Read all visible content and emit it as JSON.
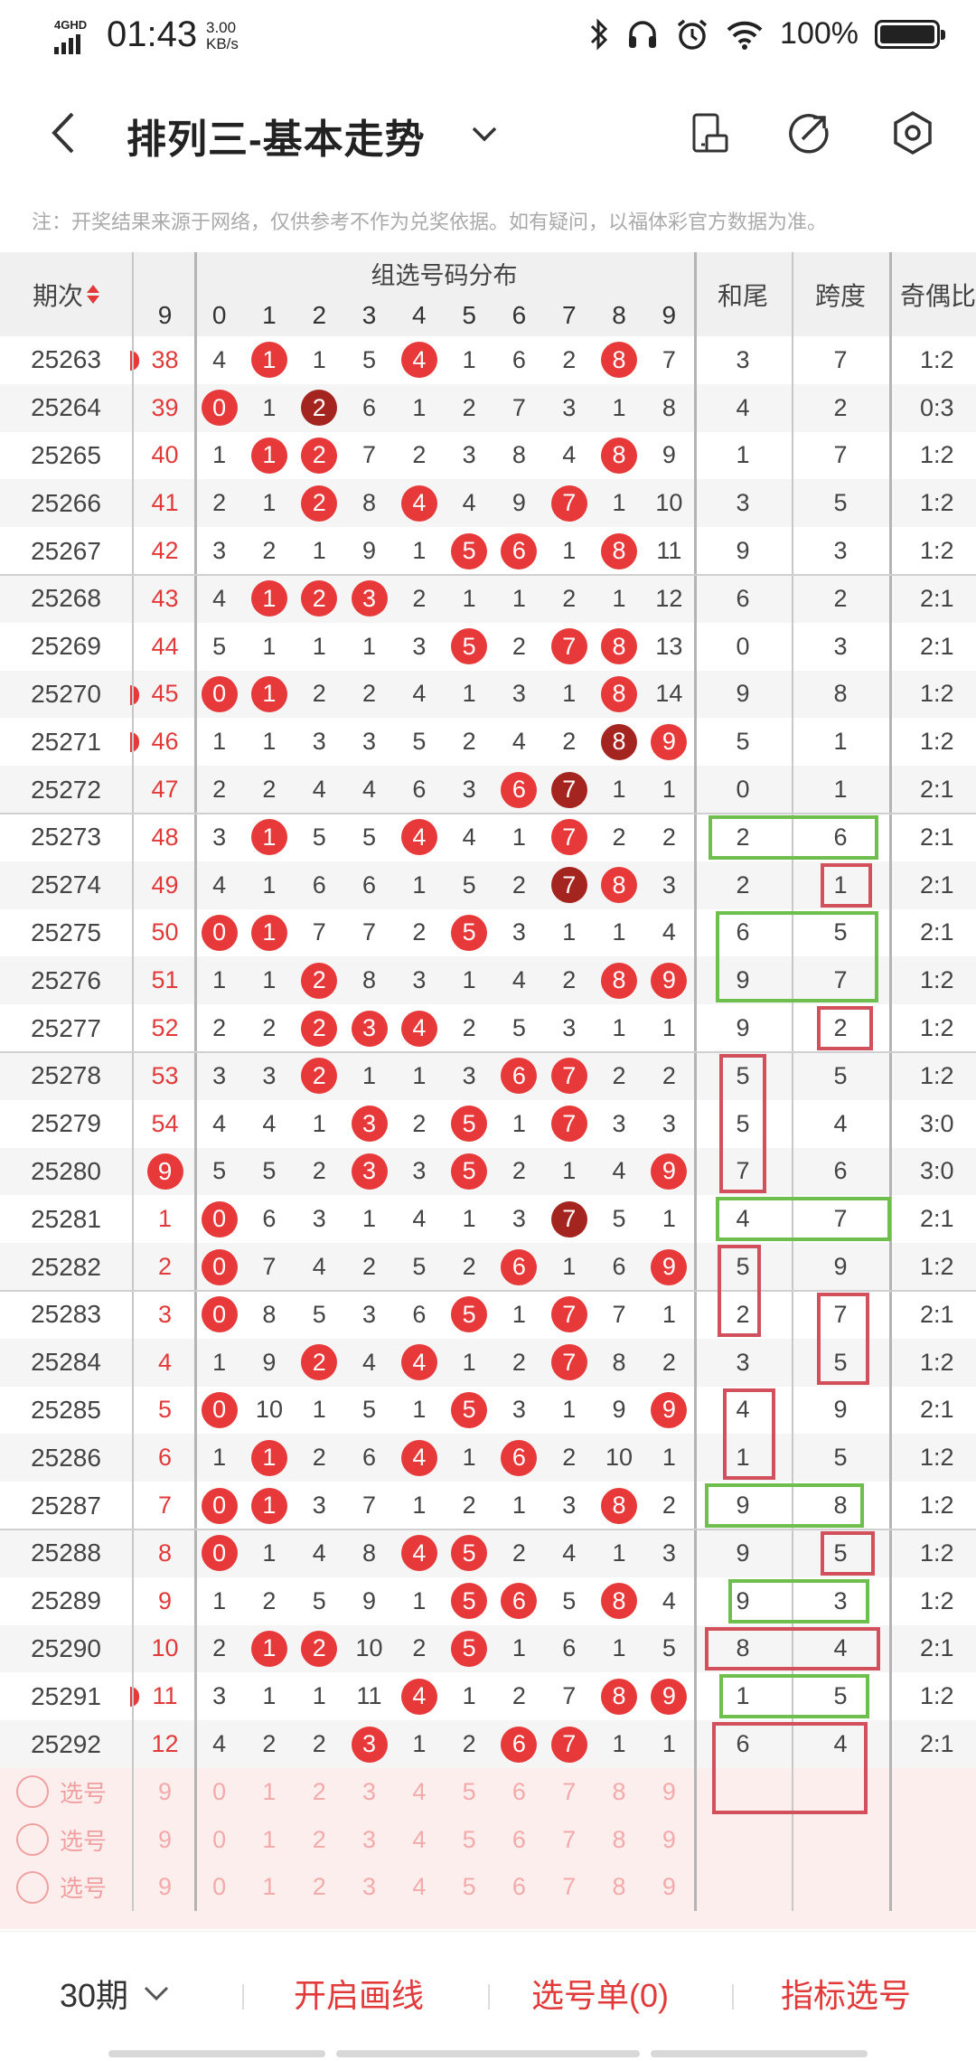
{
  "status_bar": {
    "network": "4GHD",
    "time": "01:43",
    "speed_value": "3.00",
    "speed_unit": "KB/s",
    "battery": "100%",
    "icons": [
      "bluetooth-icon",
      "headphones-icon",
      "alarm-icon",
      "wifi-icon",
      "battery-icon"
    ]
  },
  "nav": {
    "title": "排列三-基本走势",
    "icons": [
      "back-icon",
      "chevron-down-icon",
      "phone-rotate-icon",
      "share-icon",
      "settings-icon"
    ]
  },
  "notice": "注：开奖结果来源于网络，仅供参考不作为兑奖依据。如有疑问，以福体彩官方数据为准。",
  "table": {
    "headers": {
      "period": "期次",
      "group_dist": "组选号码分布",
      "sum_tail": "和尾",
      "span": "跨度",
      "odd_even": "奇偶比",
      "miss_col": "9",
      "digits": [
        "0",
        "1",
        "2",
        "3",
        "4",
        "5",
        "6",
        "7",
        "8",
        "9"
      ]
    },
    "rows": [
      {
        "period": "25263",
        "miss": "38",
        "edge": true,
        "cells": [
          "4",
          "1",
          "1",
          "5",
          "4",
          "1",
          "6",
          "2",
          "8",
          "7"
        ],
        "hit": [
          1,
          4,
          8
        ],
        "dark": [],
        "sum": "3",
        "span": "7",
        "odd": "1:2"
      },
      {
        "period": "25264",
        "miss": "39",
        "edge": false,
        "cells": [
          "0",
          "1",
          "2",
          "6",
          "1",
          "2",
          "7",
          "3",
          "1",
          "8"
        ],
        "hit": [
          0,
          2
        ],
        "dark": [
          2
        ],
        "sum": "4",
        "span": "2",
        "odd": "0:3"
      },
      {
        "period": "25265",
        "miss": "40",
        "edge": false,
        "cells": [
          "1",
          "1",
          "2",
          "7",
          "2",
          "3",
          "8",
          "4",
          "8",
          "9"
        ],
        "hit": [
          1,
          2,
          8
        ],
        "dark": [],
        "sum": "1",
        "span": "7",
        "odd": "1:2"
      },
      {
        "period": "25266",
        "miss": "41",
        "edge": false,
        "cells": [
          "2",
          "1",
          "2",
          "8",
          "4",
          "4",
          "9",
          "7",
          "1",
          "10"
        ],
        "hit": [
          2,
          4,
          7
        ],
        "dark": [],
        "sum": "3",
        "span": "5",
        "odd": "1:2"
      },
      {
        "period": "25267",
        "miss": "42",
        "edge": false,
        "cells": [
          "3",
          "2",
          "1",
          "9",
          "1",
          "5",
          "6",
          "1",
          "8",
          "11"
        ],
        "hit": [
          5,
          6,
          8
        ],
        "dark": [],
        "sum": "9",
        "span": "3",
        "odd": "1:2"
      },
      {
        "period": "25268",
        "miss": "43",
        "edge": false,
        "cells": [
          "4",
          "1",
          "2",
          "3",
          "2",
          "1",
          "1",
          "2",
          "1",
          "12"
        ],
        "hit": [
          1,
          2,
          3
        ],
        "dark": [],
        "sum": "6",
        "span": "2",
        "odd": "2:1"
      },
      {
        "period": "25269",
        "miss": "44",
        "edge": false,
        "cells": [
          "5",
          "1",
          "1",
          "1",
          "3",
          "5",
          "2",
          "7",
          "8",
          "13"
        ],
        "hit": [
          5,
          7,
          8
        ],
        "dark": [],
        "sum": "0",
        "span": "3",
        "odd": "2:1"
      },
      {
        "period": "25270",
        "miss": "45",
        "edge": true,
        "cells": [
          "0",
          "1",
          "2",
          "2",
          "4",
          "1",
          "3",
          "1",
          "8",
          "14"
        ],
        "hit": [
          0,
          1,
          8
        ],
        "dark": [],
        "sum": "9",
        "span": "8",
        "odd": "1:2"
      },
      {
        "period": "25271",
        "miss": "46",
        "edge": true,
        "cells": [
          "1",
          "1",
          "3",
          "3",
          "5",
          "2",
          "4",
          "2",
          "8",
          "9"
        ],
        "hit": [
          8,
          9
        ],
        "dark": [
          8
        ],
        "sum": "5",
        "span": "1",
        "odd": "1:2"
      },
      {
        "period": "25272",
        "miss": "47",
        "edge": false,
        "cells": [
          "2",
          "2",
          "4",
          "4",
          "6",
          "3",
          "6",
          "7",
          "1",
          "1"
        ],
        "hit": [
          6,
          7
        ],
        "dark": [
          7
        ],
        "sum": "0",
        "span": "1",
        "odd": "2:1"
      },
      {
        "period": "25273",
        "miss": "48",
        "edge": false,
        "cells": [
          "3",
          "1",
          "5",
          "5",
          "4",
          "4",
          "1",
          "7",
          "2",
          "2"
        ],
        "hit": [
          1,
          4,
          7
        ],
        "dark": [],
        "sum": "2",
        "span": "6",
        "odd": "2:1"
      },
      {
        "period": "25274",
        "miss": "49",
        "edge": false,
        "cells": [
          "4",
          "1",
          "6",
          "6",
          "1",
          "5",
          "2",
          "7",
          "8",
          "3"
        ],
        "hit": [
          7,
          8
        ],
        "dark": [
          7
        ],
        "sum": "2",
        "span": "1",
        "odd": "2:1"
      },
      {
        "period": "25275",
        "miss": "50",
        "edge": false,
        "cells": [
          "0",
          "1",
          "7",
          "7",
          "2",
          "5",
          "3",
          "1",
          "1",
          "4"
        ],
        "hit": [
          0,
          1,
          5
        ],
        "dark": [],
        "sum": "6",
        "span": "5",
        "odd": "2:1"
      },
      {
        "period": "25276",
        "miss": "51",
        "edge": false,
        "cells": [
          "1",
          "1",
          "2",
          "8",
          "3",
          "1",
          "4",
          "2",
          "8",
          "9"
        ],
        "hit": [
          2,
          8,
          9
        ],
        "dark": [],
        "sum": "9",
        "span": "7",
        "odd": "1:2"
      },
      {
        "period": "25277",
        "miss": "52",
        "edge": false,
        "cells": [
          "2",
          "2",
          "2",
          "3",
          "4",
          "2",
          "5",
          "3",
          "1",
          "1"
        ],
        "hit": [
          2,
          3,
          4
        ],
        "dark": [],
        "sum": "9",
        "span": "2",
        "odd": "1:2"
      },
      {
        "period": "25278",
        "miss": "53",
        "edge": false,
        "cells": [
          "3",
          "3",
          "2",
          "1",
          "1",
          "3",
          "6",
          "7",
          "2",
          "2"
        ],
        "hit": [
          2,
          6,
          7
        ],
        "dark": [],
        "sum": "5",
        "span": "5",
        "odd": "1:2"
      },
      {
        "period": "25279",
        "miss": "54",
        "edge": false,
        "cells": [
          "4",
          "4",
          "1",
          "3",
          "2",
          "5",
          "1",
          "7",
          "3",
          "3"
        ],
        "hit": [
          3,
          5,
          7
        ],
        "dark": [],
        "sum": "5",
        "span": "4",
        "odd": "3:0"
      },
      {
        "period": "25280",
        "miss": "9",
        "miss_ball": true,
        "edge": false,
        "cells": [
          "5",
          "5",
          "2",
          "3",
          "3",
          "5",
          "2",
          "1",
          "4",
          "9"
        ],
        "hit": [
          3,
          5,
          9
        ],
        "dark": [],
        "sum": "7",
        "span": "6",
        "odd": "3:0"
      },
      {
        "period": "25281",
        "miss": "1",
        "edge": false,
        "cells": [
          "0",
          "6",
          "3",
          "1",
          "4",
          "1",
          "3",
          "7",
          "5",
          "1"
        ],
        "hit": [
          0,
          7
        ],
        "dark": [
          7
        ],
        "sum": "4",
        "span": "7",
        "odd": "2:1"
      },
      {
        "period": "25282",
        "miss": "2",
        "edge": false,
        "cells": [
          "0",
          "7",
          "4",
          "2",
          "5",
          "2",
          "6",
          "1",
          "6",
          "9"
        ],
        "hit": [
          0,
          6,
          9
        ],
        "dark": [],
        "sum": "5",
        "span": "9",
        "odd": "1:2"
      },
      {
        "period": "25283",
        "miss": "3",
        "edge": false,
        "cells": [
          "0",
          "8",
          "5",
          "3",
          "6",
          "5",
          "1",
          "7",
          "7",
          "1"
        ],
        "hit": [
          0,
          5,
          7
        ],
        "dark": [],
        "sum": "2",
        "span": "7",
        "odd": "2:1"
      },
      {
        "period": "25284",
        "miss": "4",
        "edge": false,
        "cells": [
          "1",
          "9",
          "2",
          "4",
          "4",
          "1",
          "2",
          "7",
          "8",
          "2"
        ],
        "hit": [
          2,
          4,
          7
        ],
        "dark": [],
        "sum": "3",
        "span": "5",
        "odd": "1:2"
      },
      {
        "period": "25285",
        "miss": "5",
        "edge": false,
        "cells": [
          "0",
          "10",
          "1",
          "5",
          "1",
          "5",
          "3",
          "1",
          "9",
          "9"
        ],
        "hit": [
          0,
          5,
          9
        ],
        "dark": [],
        "sum": "4",
        "span": "9",
        "odd": "2:1"
      },
      {
        "period": "25286",
        "miss": "6",
        "edge": false,
        "cells": [
          "1",
          "1",
          "2",
          "6",
          "4",
          "1",
          "6",
          "2",
          "10",
          "1"
        ],
        "hit": [
          1,
          4,
          6
        ],
        "dark": [],
        "sum": "1",
        "span": "5",
        "odd": "1:2"
      },
      {
        "period": "25287",
        "miss": "7",
        "edge": false,
        "cells": [
          "0",
          "1",
          "3",
          "7",
          "1",
          "2",
          "1",
          "3",
          "8",
          "2"
        ],
        "hit": [
          0,
          1,
          8
        ],
        "dark": [],
        "sum": "9",
        "span": "8",
        "odd": "1:2"
      },
      {
        "period": "25288",
        "miss": "8",
        "edge": false,
        "cells": [
          "0",
          "1",
          "4",
          "8",
          "4",
          "5",
          "2",
          "4",
          "1",
          "3"
        ],
        "hit": [
          0,
          4,
          5
        ],
        "dark": [],
        "sum": "9",
        "span": "5",
        "odd": "1:2"
      },
      {
        "period": "25289",
        "miss": "9",
        "edge": false,
        "cells": [
          "1",
          "2",
          "5",
          "9",
          "1",
          "5",
          "6",
          "5",
          "8",
          "4"
        ],
        "hit": [
          5,
          6,
          8
        ],
        "dark": [],
        "sum": "9",
        "span": "3",
        "odd": "1:2"
      },
      {
        "period": "25290",
        "miss": "10",
        "edge": false,
        "cells": [
          "2",
          "1",
          "2",
          "10",
          "2",
          "5",
          "1",
          "6",
          "1",
          "5"
        ],
        "hit": [
          1,
          2,
          5
        ],
        "dark": [],
        "sum": "8",
        "span": "4",
        "odd": "2:1"
      },
      {
        "period": "25291",
        "miss": "11",
        "edge": true,
        "cells": [
          "3",
          "1",
          "1",
          "11",
          "4",
          "1",
          "2",
          "7",
          "8",
          "9"
        ],
        "hit": [
          4,
          8,
          9
        ],
        "dark": [],
        "sum": "1",
        "span": "5",
        "odd": "1:2"
      },
      {
        "period": "25292",
        "miss": "12",
        "edge": false,
        "cells": [
          "4",
          "2",
          "2",
          "3",
          "1",
          "2",
          "6",
          "7",
          "1",
          "1"
        ],
        "hit": [
          3,
          6,
          7
        ],
        "dark": [],
        "sum": "6",
        "span": "4",
        "odd": "2:1"
      }
    ],
    "select_rows": [
      {
        "label": "选号",
        "miss": "9",
        "digits": [
          "0",
          "1",
          "2",
          "3",
          "4",
          "5",
          "6",
          "7",
          "8",
          "9"
        ]
      },
      {
        "label": "选号",
        "miss": "9",
        "digits": [
          "0",
          "1",
          "2",
          "3",
          "4",
          "5",
          "6",
          "7",
          "8",
          "9"
        ]
      },
      {
        "label": "选号",
        "miss": "9",
        "digits": [
          "0",
          "1",
          "2",
          "3",
          "4",
          "5",
          "6",
          "7",
          "8",
          "9"
        ]
      }
    ]
  },
  "bottom": {
    "periods": "30期",
    "draw": "开启画线",
    "list": "选号单(0)",
    "index": "指标选号"
  },
  "colors": {
    "accent_red": "#e8393a",
    "dark_red": "#a4241f",
    "annotation_green": "#6fbf4e",
    "annotation_red": "#d2505c"
  }
}
